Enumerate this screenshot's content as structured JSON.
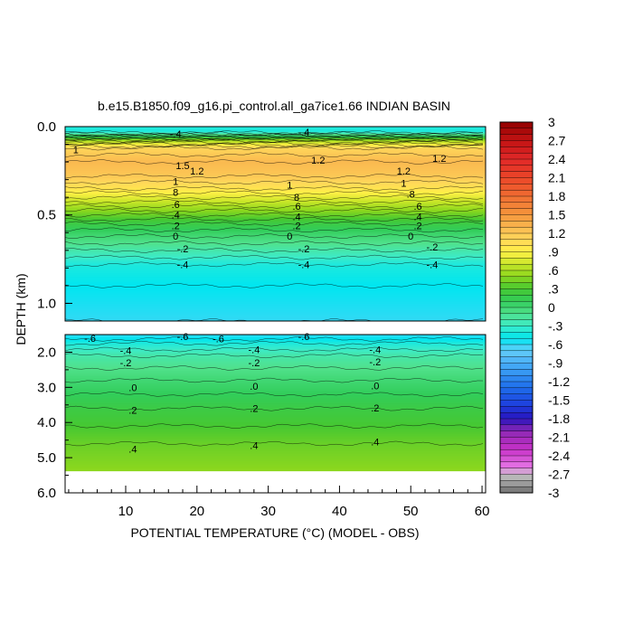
{
  "chart_data": {
    "type": "heatmap",
    "title": "b.e15.B1850.f09_g16.pi_control.all_ga7ice1.66 INDIAN BASIN",
    "xlabel": "POTENTIAL TEMPERATURE (°C) (MODEL - OBS)",
    "ylabel": "DEPTH (km)",
    "xlim": [
      1.5,
      60.5
    ],
    "x_ticks": [
      10,
      20,
      30,
      40,
      50,
      60
    ],
    "x_tick_labels": [
      "10",
      "20",
      "30",
      "40",
      "50",
      "60"
    ],
    "upper_panel": {
      "ylim": [
        0.0,
        1.1
      ],
      "y_ticks": [
        0.0,
        0.5,
        1.0
      ],
      "y_tick_labels": [
        "0.0",
        "0.5",
        "1.0"
      ]
    },
    "lower_panel": {
      "ylim": [
        1.5,
        6.0
      ],
      "y_ticks": [
        2.0,
        3.0,
        4.0,
        5.0,
        6.0
      ],
      "y_tick_labels": [
        "2.0",
        "3.0",
        "4.0",
        "5.0",
        "6.0"
      ]
    },
    "colorbar": {
      "range": [
        -3,
        3
      ],
      "labels": [
        "3",
        "2.7",
        "2.4",
        "2.1",
        "1.8",
        "1.5",
        "1.2",
        ".9",
        ".6",
        ".3",
        "0",
        "-.3",
        "-.6",
        "-.9",
        "-1.2",
        "-1.5",
        "-1.8",
        "-2.1",
        "-2.4",
        "-2.7",
        "-3"
      ]
    },
    "upper_profile": [
      {
        "depth": 0.0,
        "value": -0.4
      },
      {
        "depth": 0.03,
        "value": -0.4
      },
      {
        "depth": 0.08,
        "value": 0.6
      },
      {
        "depth": 0.12,
        "value": 1.1
      },
      {
        "depth": 0.2,
        "value": 1.3
      },
      {
        "depth": 0.28,
        "value": 1.2
      },
      {
        "depth": 0.35,
        "value": 1.0
      },
      {
        "depth": 0.4,
        "value": 0.8
      },
      {
        "depth": 0.45,
        "value": 0.6
      },
      {
        "depth": 0.5,
        "value": 0.4
      },
      {
        "depth": 0.55,
        "value": 0.2
      },
      {
        "depth": 0.62,
        "value": 0.0
      },
      {
        "depth": 0.7,
        "value": -0.2
      },
      {
        "depth": 0.78,
        "value": -0.4
      },
      {
        "depth": 0.9,
        "value": -0.5
      },
      {
        "depth": 1.1,
        "value": -0.6
      }
    ],
    "lower_profile": [
      {
        "depth": 1.5,
        "value": -0.6
      },
      {
        "depth": 1.75,
        "value": -0.4
      },
      {
        "depth": 2.1,
        "value": -0.2
      },
      {
        "depth": 2.8,
        "value": 0.0
      },
      {
        "depth": 3.6,
        "value": 0.2
      },
      {
        "depth": 4.6,
        "value": 0.4
      },
      {
        "depth": 5.35,
        "value": 0.5
      }
    ],
    "contour_labels": [
      {
        "text": "-.4",
        "x": 17,
        "depth": 0.04
      },
      {
        "text": "-.4",
        "x": 35,
        "depth": 0.03
      },
      {
        "text": "1",
        "x": 3,
        "depth": 0.13
      },
      {
        "text": "1.2",
        "x": 37,
        "depth": 0.19
      },
      {
        "text": "1.2",
        "x": 54,
        "depth": 0.18
      },
      {
        "text": "1.5",
        "x": 18,
        "depth": 0.22
      },
      {
        "text": "1.2",
        "x": 20,
        "depth": 0.25
      },
      {
        "text": "1.2",
        "x": 49,
        "depth": 0.25
      },
      {
        "text": "1",
        "x": 17,
        "depth": 0.31
      },
      {
        "text": "1",
        "x": 33,
        "depth": 0.33
      },
      {
        "text": "1",
        "x": 49,
        "depth": 0.32
      },
      {
        "text": "8",
        "x": 17,
        "depth": 0.37
      },
      {
        "text": "8",
        "x": 34,
        "depth": 0.4
      },
      {
        "text": ".8",
        "x": 50,
        "depth": 0.38
      },
      {
        "text": ".6",
        "x": 17,
        "depth": 0.44
      },
      {
        "text": ".6",
        "x": 34,
        "depth": 0.45
      },
      {
        "text": ".6",
        "x": 51,
        "depth": 0.45
      },
      {
        "text": ".4",
        "x": 17,
        "depth": 0.5
      },
      {
        "text": ".4",
        "x": 34,
        "depth": 0.51
      },
      {
        "text": ".4",
        "x": 51,
        "depth": 0.51
      },
      {
        "text": ".2",
        "x": 17,
        "depth": 0.56
      },
      {
        "text": ".2",
        "x": 34,
        "depth": 0.56
      },
      {
        "text": ".2",
        "x": 51,
        "depth": 0.56
      },
      {
        "text": "0",
        "x": 17,
        "depth": 0.62
      },
      {
        "text": "0",
        "x": 33,
        "depth": 0.62
      },
      {
        "text": "0",
        "x": 50,
        "depth": 0.62
      },
      {
        "text": "-.2",
        "x": 18,
        "depth": 0.69
      },
      {
        "text": "-.2",
        "x": 35,
        "depth": 0.69
      },
      {
        "text": "-.2",
        "x": 53,
        "depth": 0.68
      },
      {
        "text": "-.4",
        "x": 18,
        "depth": 0.78
      },
      {
        "text": "-.4",
        "x": 35,
        "depth": 0.78
      },
      {
        "text": "-.4",
        "x": 53,
        "depth": 0.78
      },
      {
        "text": "-.6",
        "x": 5,
        "depth": 1.6
      },
      {
        "text": "-.6",
        "x": 18,
        "depth": 1.55
      },
      {
        "text": "-.6",
        "x": 23,
        "depth": 1.62
      },
      {
        "text": "-.6",
        "x": 35,
        "depth": 1.55
      },
      {
        "text": "-.4",
        "x": 10,
        "depth": 1.95
      },
      {
        "text": "-.4",
        "x": 28,
        "depth": 1.93
      },
      {
        "text": "-.4",
        "x": 45,
        "depth": 1.93
      },
      {
        "text": "-.2",
        "x": 10,
        "depth": 2.3
      },
      {
        "text": "-.2",
        "x": 28,
        "depth": 2.3
      },
      {
        "text": "-.2",
        "x": 45,
        "depth": 2.27
      },
      {
        "text": ".0",
        "x": 11,
        "depth": 3.0
      },
      {
        "text": ".0",
        "x": 28,
        "depth": 2.97
      },
      {
        "text": ".0",
        "x": 45,
        "depth": 2.95
      },
      {
        "text": ".2",
        "x": 11,
        "depth": 3.65
      },
      {
        "text": ".2",
        "x": 28,
        "depth": 3.6
      },
      {
        "text": ".2",
        "x": 45,
        "depth": 3.58
      },
      {
        "text": ".4",
        "x": 11,
        "depth": 4.75
      },
      {
        "text": ".4",
        "x": 28,
        "depth": 4.65
      },
      {
        "text": ".4",
        "x": 45,
        "depth": 4.55
      }
    ]
  }
}
